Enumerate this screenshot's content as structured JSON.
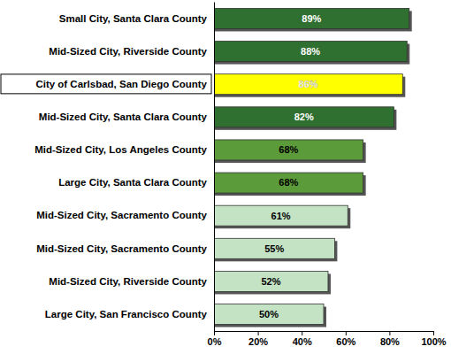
{
  "chart_data": {
    "type": "bar",
    "orientation": "horizontal",
    "categories": [
      "Small City, Santa Clara County",
      "Mid-Sized City, Riverside County",
      "City of Carlsbad, San Diego County",
      "Mid-Sized City, Santa Clara County",
      "Mid-Sized City, Los Angeles County",
      "Large City, Santa Clara County",
      "Mid-Sized City, Sacramento County",
      "Mid-Sized City, Sacramento County",
      "Mid-Sized City, Riverside County",
      "Large City, San Francisco County"
    ],
    "values": [
      89,
      88,
      86,
      82,
      68,
      68,
      61,
      55,
      52,
      50
    ],
    "value_labels": [
      "89%",
      "88%",
      "86%",
      "82%",
      "68%",
      "68%",
      "61%",
      "55%",
      "52%",
      "50%"
    ],
    "colors": [
      "#2f6f2f",
      "#2f6f2f",
      "#ffff00",
      "#2f6f2f",
      "#5c9b3a",
      "#5c9b3a",
      "#c4e3c4",
      "#c4e3c4",
      "#c4e3c4",
      "#c4e3c4"
    ],
    "data_labels": true,
    "xlim": [
      0,
      100
    ],
    "xticks": [
      {
        "value": 0,
        "label": "0%"
      },
      {
        "value": 20,
        "label": "20%"
      },
      {
        "value": 40,
        "label": "40%"
      },
      {
        "value": 60,
        "label": "60%"
      },
      {
        "value": 80,
        "label": "80%"
      },
      {
        "value": 100,
        "label": "100%"
      }
    ]
  }
}
